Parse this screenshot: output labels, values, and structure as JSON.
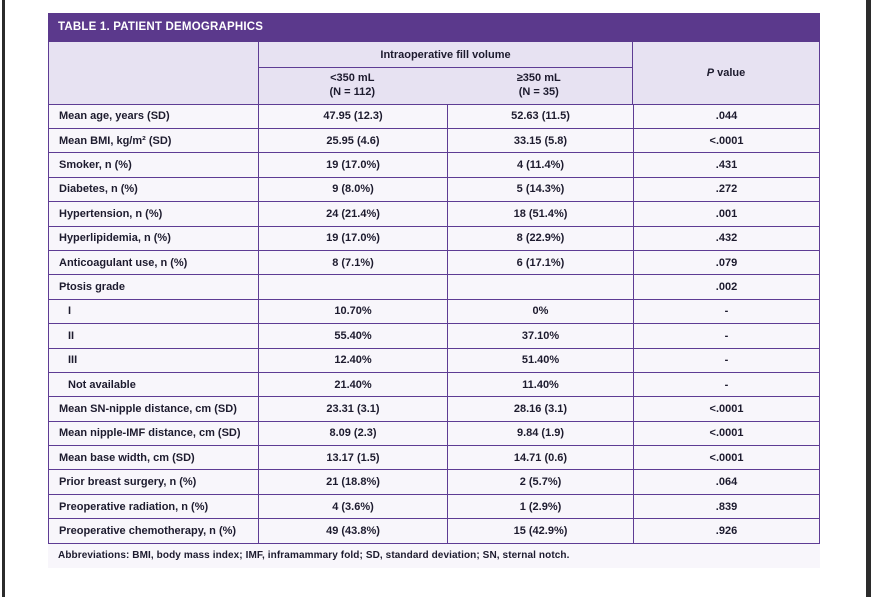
{
  "table": {
    "title": "TABLE 1. PATIENT DEMOGRAPHICS",
    "header": {
      "group_label": "Intraoperative fill volume",
      "col_lt350_line1": "<350 mL",
      "col_lt350_line2": "(N = 112)",
      "col_ge350_line1": "≥350 mL",
      "col_ge350_line2": "(N = 35)",
      "p_italic": "P",
      "p_rest": "value"
    },
    "rows": [
      {
        "label": "Mean age, years (SD)",
        "v1": "47.95 (12.3)",
        "v2": "52.63 (11.5)",
        "p": ".044",
        "indent": false
      },
      {
        "label": "Mean BMI, kg/m² (SD)",
        "v1": "25.95 (4.6)",
        "v2": "33.15 (5.8)",
        "p": "<.0001",
        "indent": false
      },
      {
        "label": "Smoker, n (%)",
        "v1": "19 (17.0%)",
        "v2": "4 (11.4%)",
        "p": ".431",
        "indent": false
      },
      {
        "label": "Diabetes, n (%)",
        "v1": "9 (8.0%)",
        "v2": "5 (14.3%)",
        "p": ".272",
        "indent": false
      },
      {
        "label": "Hypertension, n (%)",
        "v1": "24 (21.4%)",
        "v2": "18 (51.4%)",
        "p": ".001",
        "indent": false
      },
      {
        "label": "Hyperlipidemia, n (%)",
        "v1": "19 (17.0%)",
        "v2": "8 (22.9%)",
        "p": ".432",
        "indent": false
      },
      {
        "label": "Anticoagulant use, n (%)",
        "v1": "8 (7.1%)",
        "v2": "6 (17.1%)",
        "p": ".079",
        "indent": false
      },
      {
        "label": "Ptosis grade",
        "v1": "",
        "v2": "",
        "p": ".002",
        "indent": false
      },
      {
        "label": "I",
        "v1": "10.70%",
        "v2": "0%",
        "p": "-",
        "indent": true
      },
      {
        "label": "II",
        "v1": "55.40%",
        "v2": "37.10%",
        "p": "-",
        "indent": true
      },
      {
        "label": "III",
        "v1": "12.40%",
        "v2": "51.40%",
        "p": "-",
        "indent": true
      },
      {
        "label": "Not available",
        "v1": "21.40%",
        "v2": "11.40%",
        "p": "-",
        "indent": true
      },
      {
        "label": "Mean SN-nipple distance, cm (SD)",
        "v1": "23.31 (3.1)",
        "v2": "28.16 (3.1)",
        "p": "<.0001",
        "indent": false
      },
      {
        "label": "Mean nipple-IMF distance, cm (SD)",
        "v1": "8.09 (2.3)",
        "v2": "9.84 (1.9)",
        "p": "<.0001",
        "indent": false
      },
      {
        "label": "Mean base width, cm (SD)",
        "v1": "13.17 (1.5)",
        "v2": "14.71 (0.6)",
        "p": "<.0001",
        "indent": false
      },
      {
        "label": "Prior breast surgery, n (%)",
        "v1": "21 (18.8%)",
        "v2": "2 (5.7%)",
        "p": ".064",
        "indent": false
      },
      {
        "label": "Preoperative radiation, n (%)",
        "v1": "4 (3.6%)",
        "v2": "1 (2.9%)",
        "p": ".839",
        "indent": false
      },
      {
        "label": "Preoperative chemotherapy, n (%)",
        "v1": "49 (43.8%)",
        "v2": "15 (42.9%)",
        "p": ".926",
        "indent": false
      }
    ],
    "footnote": "Abbreviations: BMI, body mass index; IMF, inframammary fold; SD, standard deviation; SN, sternal notch.",
    "colors": {
      "header_purple": "#5b398c",
      "border_purple": "#5e3c94",
      "subheader_bg": "#e7e2f2",
      "row_bg": "#f8f6fb",
      "text": "#1d1b2e",
      "title_text": "#ffffff",
      "page_edge": "#2b2b2b"
    }
  }
}
